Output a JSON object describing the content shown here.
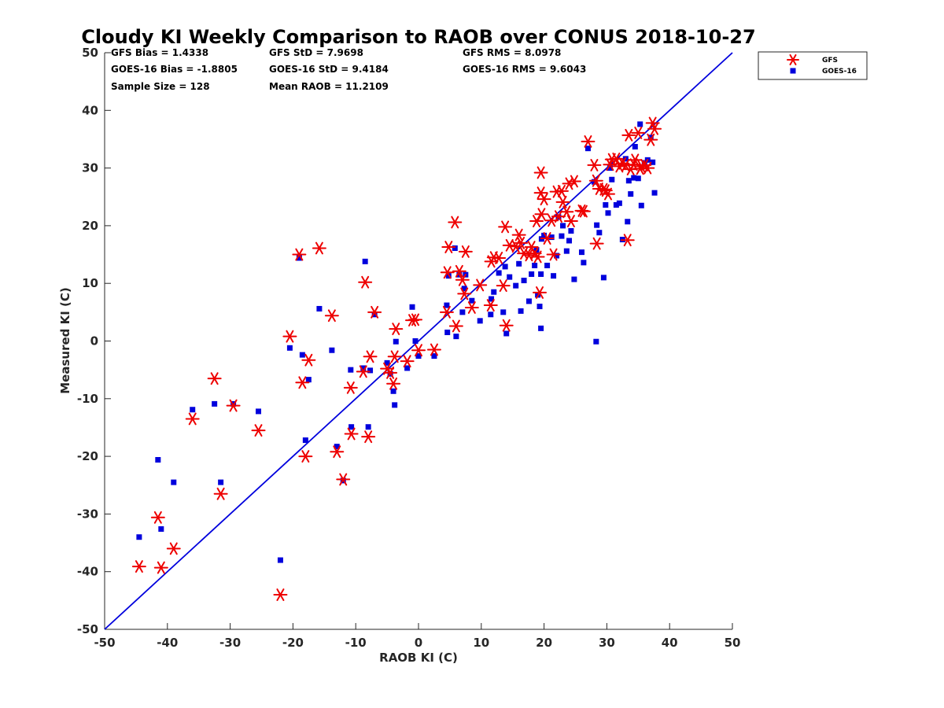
{
  "chart_data": {
    "type": "scatter",
    "title": "Cloudy KI Weekly Comparison to RAOB over CONUS 2018-10-27",
    "xlabel": "RAOB KI (C)",
    "ylabel": "Measured KI (C)",
    "xlim": [
      -50,
      50
    ],
    "ylim": [
      -50,
      50
    ],
    "xticks": [
      -50,
      -40,
      -30,
      -20,
      -10,
      0,
      10,
      20,
      30,
      40,
      50
    ],
    "yticks": [
      -50,
      -40,
      -30,
      -20,
      -10,
      0,
      10,
      20,
      30,
      40,
      50
    ],
    "grid": false,
    "legend_position": "top-right outside",
    "reference_line": {
      "x": [
        -50,
        50
      ],
      "y": [
        -50,
        50
      ],
      "color": "#0000dd"
    },
    "stats": [
      [
        "GFS Bias = 1.4338",
        "GFS StD = 7.9698",
        "GFS RMS = 8.0978"
      ],
      [
        "GOES-16 Bias = -1.8805",
        "GOES-16 StD = 9.4184",
        "GOES-16 RMS = 9.6043"
      ],
      [
        "Sample Size = 128",
        "Mean RAOB = 11.2109",
        ""
      ]
    ],
    "series": [
      {
        "name": "GFS",
        "marker": "asterisk",
        "color": "#ee0000",
        "points": [
          [
            -44.5,
            -39.1
          ],
          [
            -41.5,
            -30.6
          ],
          [
            -41,
            -39.3
          ],
          [
            -39,
            -36
          ],
          [
            -36,
            -13.5
          ],
          [
            -32.5,
            -6.5
          ],
          [
            -31.5,
            -26.5
          ],
          [
            -29.5,
            -11.2
          ],
          [
            -25.5,
            -15.5
          ],
          [
            -22,
            -44
          ],
          [
            -20.5,
            0.8
          ],
          [
            -19,
            15
          ],
          [
            -18.5,
            -7.2
          ],
          [
            -18,
            -20
          ],
          [
            -17.5,
            -3.3
          ],
          [
            -15.8,
            16.1
          ],
          [
            -13.8,
            4.4
          ],
          [
            -13,
            -19.2
          ],
          [
            -12,
            -24
          ],
          [
            -10.8,
            -8.1
          ],
          [
            -10.7,
            -16.1
          ],
          [
            -8.8,
            -5.3
          ],
          [
            -8.5,
            10.2
          ],
          [
            -8,
            -16.6
          ],
          [
            -7.7,
            -2.7
          ],
          [
            -7,
            5
          ],
          [
            -5,
            -4.8
          ],
          [
            -4.5,
            -5.5
          ],
          [
            -4,
            -7.4
          ],
          [
            -3.8,
            -2.7
          ],
          [
            -3.6,
            2.1
          ],
          [
            -1.8,
            -3.5
          ],
          [
            -1,
            3.6
          ],
          [
            -0.5,
            3.7
          ],
          [
            0,
            -1.6
          ],
          [
            2.5,
            -1.5
          ],
          [
            4.5,
            5
          ],
          [
            4.6,
            11.9
          ],
          [
            4.8,
            16.3
          ],
          [
            5.8,
            20.6
          ],
          [
            6,
            2.6
          ],
          [
            6.5,
            12.1
          ],
          [
            7,
            10.6
          ],
          [
            7.3,
            8.2
          ],
          [
            7.5,
            15.5
          ],
          [
            8.5,
            5.8
          ],
          [
            9.8,
            9.7
          ],
          [
            11.5,
            6.2
          ],
          [
            11.6,
            13.8
          ],
          [
            12,
            14.5
          ],
          [
            12.8,
            14.4
          ],
          [
            13.5,
            9.6
          ],
          [
            13.8,
            19.8
          ],
          [
            14,
            2.7
          ],
          [
            14.5,
            16.6
          ],
          [
            15.5,
            16.4
          ],
          [
            16,
            18.4
          ],
          [
            16.3,
            17
          ],
          [
            16.8,
            15.2
          ],
          [
            17.6,
            14.9
          ],
          [
            18,
            16.3
          ],
          [
            18.5,
            15.2
          ],
          [
            18.8,
            20.8
          ],
          [
            19,
            14.6
          ],
          [
            19.3,
            8.4
          ],
          [
            19.5,
            29.2
          ],
          [
            19.5,
            25.7
          ],
          [
            19.6,
            22
          ],
          [
            20,
            24.6
          ],
          [
            20.5,
            17.8
          ],
          [
            21.2,
            20.9
          ],
          [
            21.5,
            15
          ],
          [
            22,
            25.9
          ],
          [
            22.3,
            21.6
          ],
          [
            22.8,
            26
          ],
          [
            23,
            24.1
          ],
          [
            23.6,
            22.4
          ],
          [
            24,
            27.3
          ],
          [
            24.3,
            20.8
          ],
          [
            24.8,
            27.7
          ],
          [
            26,
            22.6
          ],
          [
            26.3,
            22.5
          ],
          [
            27,
            34.6
          ],
          [
            28,
            30.5
          ],
          [
            28.3,
            27.8
          ],
          [
            28.4,
            16.9
          ],
          [
            28.8,
            26.4
          ],
          [
            29.5,
            26.3
          ],
          [
            29.8,
            26.1
          ],
          [
            30.2,
            25.5
          ],
          [
            30.5,
            30.6
          ],
          [
            30.8,
            31.5
          ],
          [
            31.5,
            31.6
          ],
          [
            32,
            30.3
          ],
          [
            32.5,
            30.8
          ],
          [
            33,
            30.5
          ],
          [
            33.3,
            17.5
          ],
          [
            33.5,
            35.7
          ],
          [
            33.8,
            29.8
          ],
          [
            34.3,
            30.6
          ],
          [
            34.5,
            31.4
          ],
          [
            35,
            36.1
          ],
          [
            35.3,
            29.9
          ],
          [
            35.5,
            30.3
          ],
          [
            36,
            30.5
          ],
          [
            36.5,
            30
          ],
          [
            37,
            34.9
          ],
          [
            37.3,
            37.8
          ],
          [
            37.6,
            36.8
          ]
        ]
      },
      {
        "name": "GOES-16",
        "marker": "square",
        "color": "#0000dd",
        "points": [
          [
            -44.5,
            -34
          ],
          [
            -41.5,
            -20.6
          ],
          [
            -41,
            -32.6
          ],
          [
            -39,
            -24.5
          ],
          [
            -36,
            -11.9
          ],
          [
            -32.5,
            -10.9
          ],
          [
            -31.5,
            -24.5
          ],
          [
            -29.5,
            -10.9
          ],
          [
            -25.5,
            -12.2
          ],
          [
            -22,
            -38
          ],
          [
            -20.5,
            -1.2
          ],
          [
            -19,
            14.4
          ],
          [
            -18.5,
            -2.4
          ],
          [
            -18,
            -17.2
          ],
          [
            -17.5,
            -6.7
          ],
          [
            -15.8,
            5.6
          ],
          [
            -13.8,
            -1.6
          ],
          [
            -13,
            -18.3
          ],
          [
            -12,
            -24.2
          ],
          [
            -10.8,
            -5
          ],
          [
            -10.7,
            -14.9
          ],
          [
            -8.8,
            -4.7
          ],
          [
            -8.5,
            13.8
          ],
          [
            -8,
            -14.9
          ],
          [
            -7.7,
            -5.1
          ],
          [
            -7,
            4.6
          ],
          [
            -5,
            -3.8
          ],
          [
            -4.5,
            -5.7
          ],
          [
            -4,
            -8.7
          ],
          [
            -3.8,
            -11.1
          ],
          [
            -3.6,
            -0.1
          ],
          [
            -1.8,
            -4.7
          ],
          [
            -1,
            5.9
          ],
          [
            -0.5,
            0
          ],
          [
            0,
            -2.6
          ],
          [
            2.5,
            -2.6
          ],
          [
            4.5,
            6.2
          ],
          [
            4.6,
            1.5
          ],
          [
            4.8,
            11.3
          ],
          [
            5.8,
            16.1
          ],
          [
            6,
            0.8
          ],
          [
            6.5,
            11.5
          ],
          [
            7,
            5
          ],
          [
            7.3,
            9.1
          ],
          [
            7.5,
            11.5
          ],
          [
            8.5,
            7
          ],
          [
            9.8,
            3.5
          ],
          [
            11.5,
            4.6
          ],
          [
            11.6,
            7.3
          ],
          [
            12,
            8.5
          ],
          [
            12.8,
            11.8
          ],
          [
            13.5,
            5
          ],
          [
            13.8,
            12.9
          ],
          [
            14,
            1.3
          ],
          [
            14.5,
            11.1
          ],
          [
            15.5,
            9.6
          ],
          [
            16,
            13.4
          ],
          [
            16.3,
            5.2
          ],
          [
            16.8,
            10.5
          ],
          [
            17.6,
            6.9
          ],
          [
            18,
            11.6
          ],
          [
            18.5,
            13.1
          ],
          [
            18.8,
            15.8
          ],
          [
            19,
            8
          ],
          [
            19.3,
            6
          ],
          [
            19.5,
            2.2
          ],
          [
            19.5,
            11.6
          ],
          [
            19.6,
            17.7
          ],
          [
            20,
            18.3
          ],
          [
            20.5,
            13.1
          ],
          [
            21.2,
            18
          ],
          [
            21.5,
            11.3
          ],
          [
            22,
            14.8
          ],
          [
            22.3,
            21.5
          ],
          [
            22.8,
            18.2
          ],
          [
            23,
            20
          ],
          [
            23.6,
            15.6
          ],
          [
            24,
            17.4
          ],
          [
            24.3,
            19.1
          ],
          [
            24.8,
            10.7
          ],
          [
            26,
            15.4
          ],
          [
            26.3,
            13.6
          ],
          [
            27,
            33.4
          ],
          [
            28,
            27.6
          ],
          [
            28.3,
            -0.1
          ],
          [
            28.4,
            20.1
          ],
          [
            28.8,
            18.8
          ],
          [
            29.5,
            11
          ],
          [
            29.8,
            23.6
          ],
          [
            30.2,
            22.2
          ],
          [
            30.5,
            30
          ],
          [
            30.8,
            28
          ],
          [
            31.5,
            23.6
          ],
          [
            32,
            23.9
          ],
          [
            32.5,
            17.6
          ],
          [
            33,
            31.6
          ],
          [
            33.3,
            20.7
          ],
          [
            33.5,
            27.8
          ],
          [
            33.8,
            25.5
          ],
          [
            34.3,
            28.3
          ],
          [
            34.5,
            33.7
          ],
          [
            35,
            28.2
          ],
          [
            35.3,
            37.6
          ],
          [
            35.5,
            23.5
          ],
          [
            36,
            30.9
          ],
          [
            36.5,
            31.4
          ],
          [
            37,
            35.3
          ],
          [
            37.3,
            31
          ],
          [
            37.6,
            25.7
          ]
        ]
      }
    ]
  }
}
